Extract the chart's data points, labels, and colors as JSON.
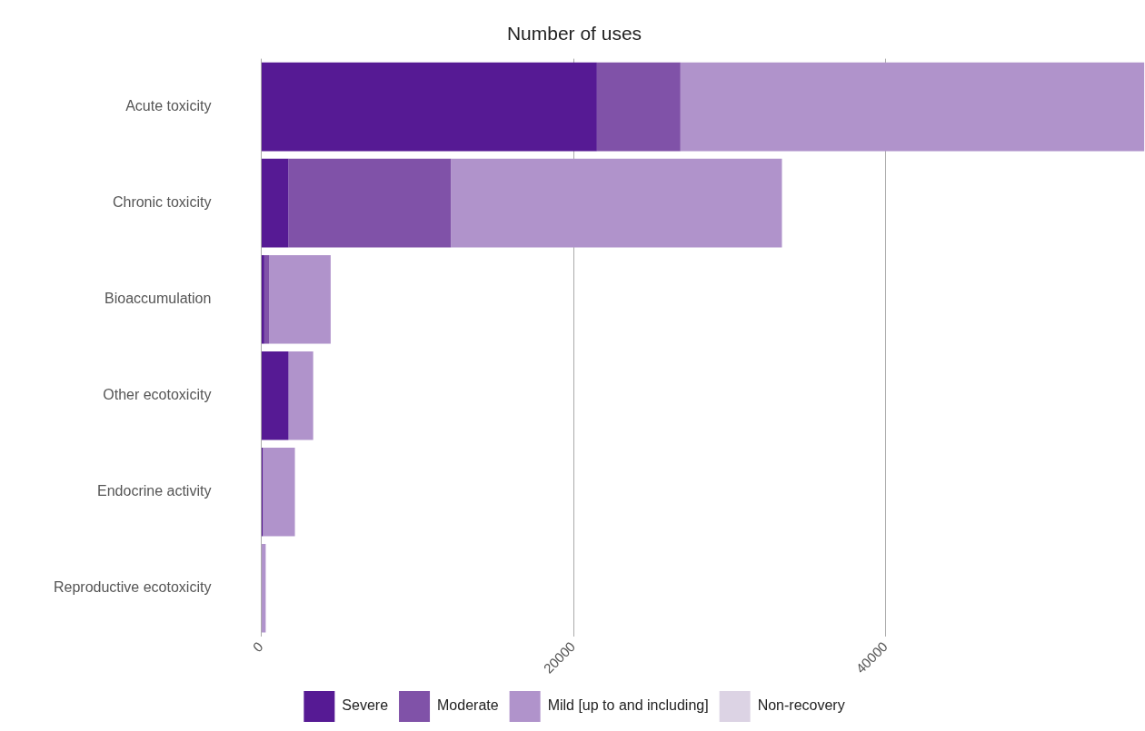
{
  "chart_data": {
    "type": "bar",
    "orientation": "horizontal",
    "stacked": true,
    "title": "Number of uses",
    "categories": [
      "Acute toxicity",
      "Chronic toxicity",
      "Bioaccumulation",
      "Other ecotoxicity",
      "Endocrine activity",
      "Reproductive ecotoxicity"
    ],
    "series": [
      {
        "name": "Severe",
        "color": "#561a94",
        "values": [
          21500,
          1750,
          200,
          1750,
          100,
          0
        ]
      },
      {
        "name": "Moderate",
        "color": "#8052a8",
        "values": [
          5350,
          10400,
          300,
          0,
          0,
          0
        ]
      },
      {
        "name": "Mild [up to and including]",
        "color": "#b093cb",
        "values": [
          29700,
          21200,
          3950,
          1580,
          2060,
          290
        ]
      },
      {
        "name": "Non-recovery",
        "color": "#dcd3e4",
        "values": [
          0,
          0,
          0,
          0,
          0,
          0
        ]
      }
    ],
    "xlim": [
      0,
      56600
    ],
    "xticks": [
      0,
      20000,
      40000
    ],
    "grid": "x",
    "legend": "bottom"
  }
}
